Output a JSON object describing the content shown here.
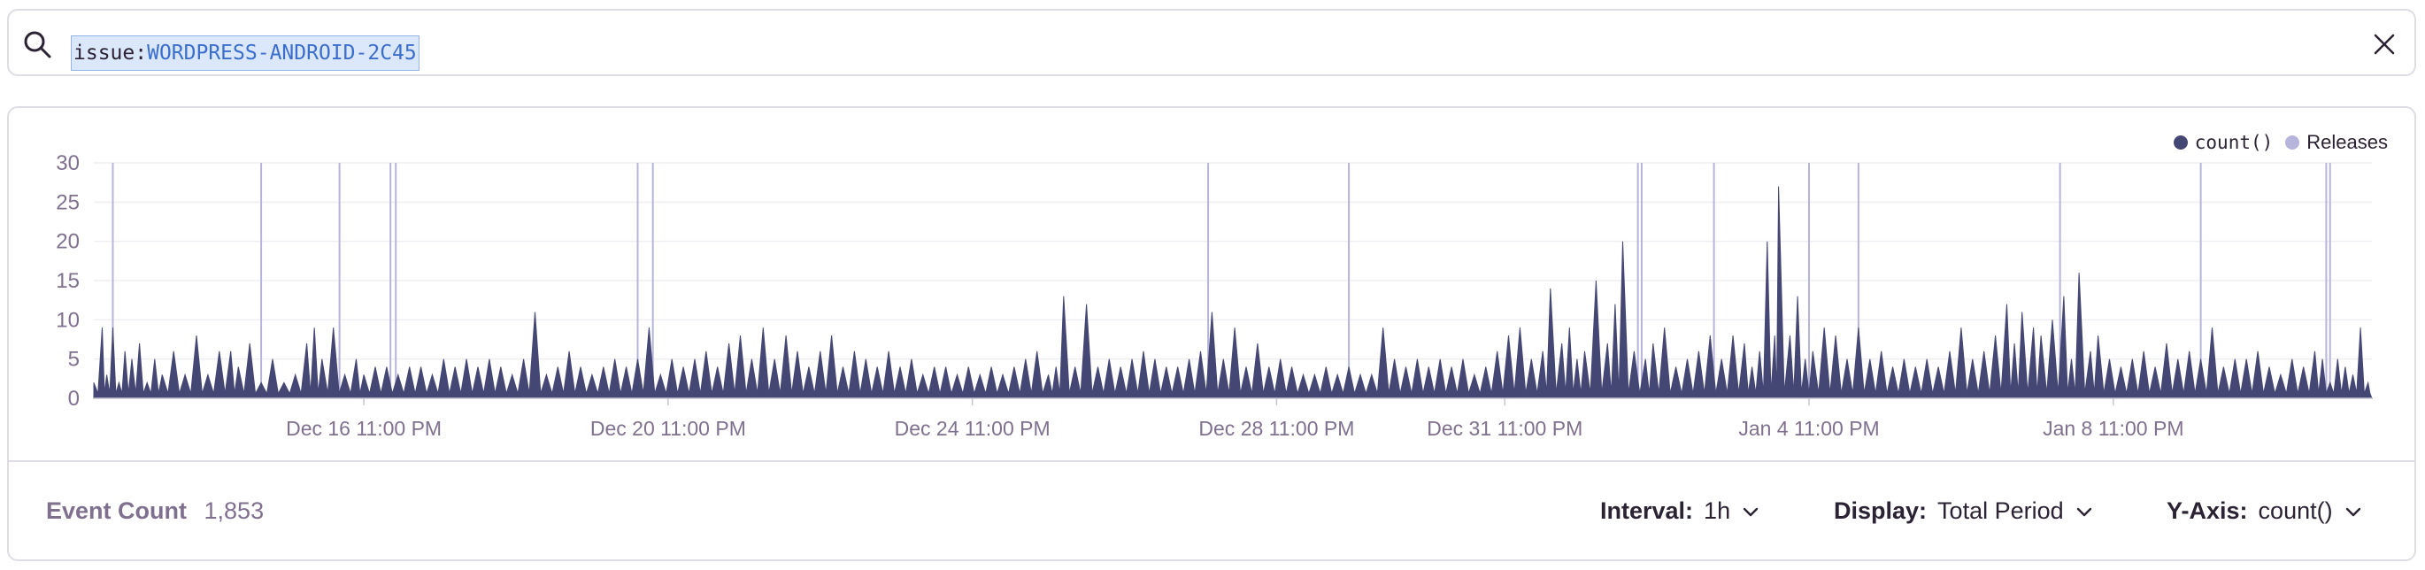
{
  "search": {
    "query_key": "issue:",
    "query_value": "WORDPRESS-ANDROID-2C45"
  },
  "legend": [
    {
      "label": "count()",
      "color": "#444674"
    },
    {
      "label": "Releases",
      "color": "#b7b4dc"
    }
  ],
  "footer": {
    "event_count_label": "Event Count",
    "event_count_value": "1,853",
    "interval_label": "Interval:",
    "interval_value": "1h",
    "display_label": "Display:",
    "display_value": "Total Period",
    "yaxis_label": "Y-Axis:",
    "yaxis_value": "count()"
  },
  "colors": {
    "area": "#444674",
    "release_line": "#b7b4dc",
    "grid": "#efedf2",
    "axis_text": "#80708f"
  },
  "chart_data": {
    "type": "area",
    "ylim": [
      0,
      30
    ],
    "yticks": [
      0,
      5,
      10,
      15,
      20,
      25,
      30
    ],
    "xticks": [
      {
        "label": "Dec 16 11:00 PM",
        "t": 5.0
      },
      {
        "label": "Dec 20 11:00 PM",
        "t": 9.0
      },
      {
        "label": "Dec 24 11:00 PM",
        "t": 13.0
      },
      {
        "label": "Dec 28 11:00 PM",
        "t": 17.0
      },
      {
        "label": "Dec 31 11:00 PM",
        "t": 20.0
      },
      {
        "label": "Jan 4 11:00 PM",
        "t": 24.0
      },
      {
        "label": "Jan 8 11:00 PM",
        "t": 28.0
      }
    ],
    "x_range": [
      1.45,
      31.4
    ],
    "series": [
      {
        "name": "count()",
        "peaks": [
          [
            1.45,
            2
          ],
          [
            1.56,
            9
          ],
          [
            1.62,
            3
          ],
          [
            1.7,
            9
          ],
          [
            1.78,
            2
          ],
          [
            1.86,
            6
          ],
          [
            1.95,
            5
          ],
          [
            2.05,
            7
          ],
          [
            2.15,
            2
          ],
          [
            2.25,
            5
          ],
          [
            2.35,
            3
          ],
          [
            2.5,
            6
          ],
          [
            2.65,
            3
          ],
          [
            2.8,
            8
          ],
          [
            2.95,
            3
          ],
          [
            3.1,
            6
          ],
          [
            3.25,
            6
          ],
          [
            3.35,
            4
          ],
          [
            3.5,
            7
          ],
          [
            3.65,
            2
          ],
          [
            3.8,
            5
          ],
          [
            3.95,
            2
          ],
          [
            4.1,
            3
          ],
          [
            4.25,
            7
          ],
          [
            4.35,
            9
          ],
          [
            4.45,
            5
          ],
          [
            4.6,
            9
          ],
          [
            4.75,
            3
          ],
          [
            4.9,
            5
          ],
          [
            5.0,
            3
          ],
          [
            5.15,
            4
          ],
          [
            5.3,
            4
          ],
          [
            5.45,
            3
          ],
          [
            5.6,
            4
          ],
          [
            5.75,
            4
          ],
          [
            5.9,
            3
          ],
          [
            6.05,
            5
          ],
          [
            6.2,
            4
          ],
          [
            6.35,
            5
          ],
          [
            6.5,
            4
          ],
          [
            6.65,
            5
          ],
          [
            6.8,
            4
          ],
          [
            6.95,
            3
          ],
          [
            7.1,
            5
          ],
          [
            7.25,
            11
          ],
          [
            7.4,
            3
          ],
          [
            7.55,
            4
          ],
          [
            7.7,
            6
          ],
          [
            7.85,
            4
          ],
          [
            8.0,
            3
          ],
          [
            8.15,
            4
          ],
          [
            8.3,
            5
          ],
          [
            8.45,
            4
          ],
          [
            8.6,
            5
          ],
          [
            8.75,
            9
          ],
          [
            8.9,
            3
          ],
          [
            9.05,
            5
          ],
          [
            9.2,
            4
          ],
          [
            9.35,
            5
          ],
          [
            9.5,
            6
          ],
          [
            9.65,
            4
          ],
          [
            9.8,
            7
          ],
          [
            9.95,
            8
          ],
          [
            10.1,
            5
          ],
          [
            10.25,
            9
          ],
          [
            10.4,
            5
          ],
          [
            10.55,
            8
          ],
          [
            10.7,
            6
          ],
          [
            10.85,
            4
          ],
          [
            11.0,
            6
          ],
          [
            11.15,
            8
          ],
          [
            11.3,
            4
          ],
          [
            11.45,
            6
          ],
          [
            11.6,
            5
          ],
          [
            11.75,
            4
          ],
          [
            11.9,
            6
          ],
          [
            12.05,
            4
          ],
          [
            12.2,
            5
          ],
          [
            12.35,
            3
          ],
          [
            12.5,
            4
          ],
          [
            12.65,
            4
          ],
          [
            12.8,
            3
          ],
          [
            12.95,
            4
          ],
          [
            13.1,
            3
          ],
          [
            13.25,
            4
          ],
          [
            13.4,
            3
          ],
          [
            13.55,
            4
          ],
          [
            13.7,
            5
          ],
          [
            13.85,
            6
          ],
          [
            14.0,
            3
          ],
          [
            14.1,
            4
          ],
          [
            14.2,
            13
          ],
          [
            14.35,
            4
          ],
          [
            14.5,
            12
          ],
          [
            14.65,
            4
          ],
          [
            14.8,
            5
          ],
          [
            14.95,
            4
          ],
          [
            15.1,
            5
          ],
          [
            15.25,
            6
          ],
          [
            15.4,
            5
          ],
          [
            15.55,
            4
          ],
          [
            15.7,
            4
          ],
          [
            15.85,
            5
          ],
          [
            16.0,
            6
          ],
          [
            16.15,
            11
          ],
          [
            16.3,
            5
          ],
          [
            16.45,
            9
          ],
          [
            16.6,
            4
          ],
          [
            16.75,
            7
          ],
          [
            16.9,
            4
          ],
          [
            17.05,
            5
          ],
          [
            17.2,
            4
          ],
          [
            17.35,
            3
          ],
          [
            17.5,
            3
          ],
          [
            17.65,
            4
          ],
          [
            17.8,
            3
          ],
          [
            17.95,
            4
          ],
          [
            18.1,
            3
          ],
          [
            18.25,
            3
          ],
          [
            18.4,
            9
          ],
          [
            18.55,
            5
          ],
          [
            18.7,
            4
          ],
          [
            18.85,
            5
          ],
          [
            19.0,
            4
          ],
          [
            19.15,
            5
          ],
          [
            19.3,
            4
          ],
          [
            19.45,
            5
          ],
          [
            19.6,
            3
          ],
          [
            19.75,
            4
          ],
          [
            19.9,
            6
          ],
          [
            20.05,
            8
          ],
          [
            20.2,
            9
          ],
          [
            20.35,
            5
          ],
          [
            20.5,
            6
          ],
          [
            20.6,
            14
          ],
          [
            20.75,
            7
          ],
          [
            20.85,
            9
          ],
          [
            20.95,
            5
          ],
          [
            21.05,
            6
          ],
          [
            21.2,
            15
          ],
          [
            21.35,
            7
          ],
          [
            21.45,
            12
          ],
          [
            21.55,
            20
          ],
          [
            21.7,
            6
          ],
          [
            21.85,
            5
          ],
          [
            21.95,
            7
          ],
          [
            22.1,
            9
          ],
          [
            22.25,
            4
          ],
          [
            22.4,
            5
          ],
          [
            22.55,
            6
          ],
          [
            22.7,
            8
          ],
          [
            22.85,
            5
          ],
          [
            23.0,
            8
          ],
          [
            23.15,
            7
          ],
          [
            23.25,
            4
          ],
          [
            23.35,
            6
          ],
          [
            23.45,
            20
          ],
          [
            23.55,
            8
          ],
          [
            23.6,
            27
          ],
          [
            23.75,
            8
          ],
          [
            23.85,
            13
          ],
          [
            23.95,
            5
          ],
          [
            24.05,
            6
          ],
          [
            24.2,
            9
          ],
          [
            24.35,
            8
          ],
          [
            24.5,
            5
          ],
          [
            24.65,
            9
          ],
          [
            24.8,
            5
          ],
          [
            24.95,
            6
          ],
          [
            25.1,
            4
          ],
          [
            25.25,
            5
          ],
          [
            25.4,
            4
          ],
          [
            25.55,
            5
          ],
          [
            25.7,
            4
          ],
          [
            25.85,
            6
          ],
          [
            26.0,
            9
          ],
          [
            26.15,
            5
          ],
          [
            26.3,
            6
          ],
          [
            26.45,
            8
          ],
          [
            26.6,
            12
          ],
          [
            26.7,
            7
          ],
          [
            26.8,
            11
          ],
          [
            26.95,
            9
          ],
          [
            27.05,
            8
          ],
          [
            27.2,
            10
          ],
          [
            27.35,
            13
          ],
          [
            27.45,
            5
          ],
          [
            27.55,
            16
          ],
          [
            27.7,
            6
          ],
          [
            27.8,
            8
          ],
          [
            27.95,
            5
          ],
          [
            28.1,
            4
          ],
          [
            28.25,
            5
          ],
          [
            28.4,
            6
          ],
          [
            28.55,
            4
          ],
          [
            28.7,
            7
          ],
          [
            28.85,
            5
          ],
          [
            29.0,
            6
          ],
          [
            29.15,
            5
          ],
          [
            29.3,
            9
          ],
          [
            29.45,
            4
          ],
          [
            29.6,
            5
          ],
          [
            29.75,
            5
          ],
          [
            29.9,
            6
          ],
          [
            30.05,
            4
          ],
          [
            30.2,
            3
          ],
          [
            30.35,
            5
          ],
          [
            30.5,
            4
          ],
          [
            30.65,
            6
          ],
          [
            30.75,
            5
          ],
          [
            30.85,
            2
          ],
          [
            30.95,
            5
          ],
          [
            31.05,
            4
          ],
          [
            31.15,
            3
          ],
          [
            31.25,
            9
          ],
          [
            31.35,
            2
          ],
          [
            31.4,
            0
          ]
        ]
      }
    ],
    "releases": [
      1.7,
      3.65,
      4.68,
      5.35,
      5.42,
      8.6,
      8.8,
      16.1,
      17.95,
      21.75,
      21.8,
      22.75,
      24.0,
      24.65,
      27.3,
      29.15,
      30.8,
      30.85
    ]
  }
}
